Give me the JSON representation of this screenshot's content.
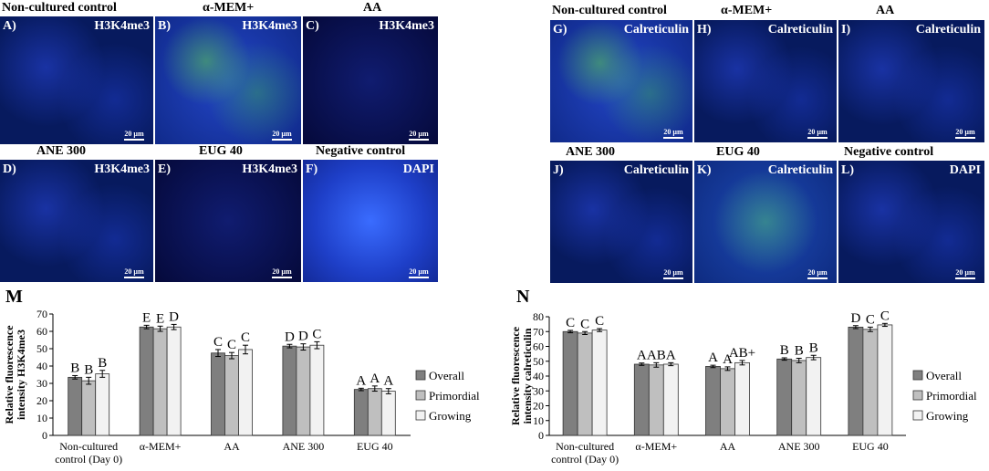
{
  "figure_left": {
    "panels": [
      {
        "title": "Non-cultured control",
        "letter": "A)",
        "stain": "H3K4me3",
        "scale": "20 µm"
      },
      {
        "title": "α-MEM+",
        "letter": "B)",
        "stain": "H3K4me3",
        "scale": "20 µm"
      },
      {
        "title": "AA",
        "letter": "C)",
        "stain": "H3K4me3",
        "scale": "20 µm"
      },
      {
        "title": "ANE 300",
        "letter": "D)",
        "stain": "H3K4me3",
        "scale": "20 µm"
      },
      {
        "title": "EUG 40",
        "letter": "E)",
        "stain": "H3K4me3",
        "scale": "20 µm"
      },
      {
        "title": "Negative control",
        "letter": "F)",
        "stain": "DAPI",
        "scale": "20 µm"
      }
    ]
  },
  "figure_right": {
    "panels": [
      {
        "title": "Non-cultured control",
        "letter": "G)",
        "stain": "Calreticulin",
        "scale": "20 µm"
      },
      {
        "title": "α-MEM+",
        "letter": "H)",
        "stain": "Calreticulin",
        "scale": "20 µm"
      },
      {
        "title": "AA",
        "letter": "I)",
        "stain": "Calreticulin",
        "scale": "20 µm"
      },
      {
        "title": "ANE 300",
        "letter": "J)",
        "stain": "Calreticulin",
        "scale": "20 µm"
      },
      {
        "title": "EUG 40",
        "letter": "K)",
        "stain": "Calreticulin",
        "scale": "20 µm"
      },
      {
        "title": "Negative control",
        "letter": "L)",
        "stain": "DAPI",
        "scale": "20 µm"
      }
    ]
  },
  "colors": {
    "overall": "#7f7f7f",
    "primordial": "#bfbfbf",
    "growing": "#f2f2f2"
  },
  "chart_data": [
    {
      "letter": "M",
      "type": "bar",
      "categories": [
        "Non-cultured control (Day 0)",
        "α-MEM+",
        "AA",
        "ANE 300",
        "EUG 40"
      ],
      "category_lines": [
        [
          "Non-cultured",
          "control (Day 0)"
        ],
        [
          "α-MEM+"
        ],
        [
          "AA"
        ],
        [
          "ANE 300"
        ],
        [
          "EUG 40"
        ]
      ],
      "series": [
        {
          "name": "Overall",
          "values": [
            33.5,
            62.5,
            47.5,
            51.5,
            26.5
          ],
          "errors": [
            1.0,
            1.0,
            2.0,
            1.0,
            0.7
          ],
          "letters": [
            "B",
            "E",
            "C",
            "D",
            "A"
          ]
        },
        {
          "name": "Primordial",
          "values": [
            31.5,
            61.5,
            46.0,
            51.0,
            27.0
          ],
          "errors": [
            2.0,
            1.5,
            1.8,
            1.8,
            1.5
          ],
          "letters": [
            "B",
            "E",
            "C",
            "D",
            "A"
          ]
        },
        {
          "name": "Growing",
          "values": [
            35.5,
            62.5,
            49.5,
            52.0,
            25.5
          ],
          "errors": [
            2.0,
            1.5,
            2.5,
            2.0,
            1.5
          ],
          "letters": [
            "B",
            "D",
            "C",
            "C",
            "A"
          ]
        }
      ],
      "ylabel_lines": [
        "Relative fluorescence",
        "intensity H3K4me3"
      ],
      "ylim": [
        0,
        70
      ],
      "yticks": [
        0,
        10,
        20,
        30,
        40,
        50,
        60,
        70
      ],
      "legend": "right"
    },
    {
      "letter": "N",
      "type": "bar",
      "categories": [
        "Non-cultured control (Day 0)",
        "α-MEM+",
        "AA",
        "ANE 300",
        "EUG 40"
      ],
      "category_lines": [
        [
          "Non-cultured",
          "control (Day 0)"
        ],
        [
          "α-MEM+"
        ],
        [
          "AA"
        ],
        [
          "ANE 300"
        ],
        [
          "EUG 40"
        ]
      ],
      "series": [
        {
          "name": "Overall",
          "values": [
            70.0,
            48.0,
            46.5,
            51.5,
            73.0
          ],
          "errors": [
            0.8,
            0.8,
            0.8,
            0.8,
            1.0
          ],
          "letters": [
            "C",
            "A",
            "A",
            "B",
            "D"
          ]
        },
        {
          "name": "Primordial",
          "values": [
            69.0,
            47.5,
            45.0,
            50.5,
            71.5
          ],
          "errors": [
            1.0,
            1.5,
            1.2,
            1.5,
            1.5
          ],
          "letters": [
            "C",
            "AB",
            "A",
            "B",
            "C"
          ]
        },
        {
          "name": "Growing",
          "values": [
            71.0,
            48.0,
            49.0,
            52.5,
            74.5
          ],
          "errors": [
            1.0,
            1.0,
            1.5,
            1.5,
            1.0
          ],
          "letters": [
            "C",
            "A",
            "AB+",
            "B",
            "C"
          ]
        }
      ],
      "ylabel_lines": [
        "Relative fluorescence",
        "intensity calreticulin"
      ],
      "ylim": [
        0,
        80
      ],
      "yticks": [
        0,
        10,
        20,
        30,
        40,
        50,
        60,
        70,
        80
      ],
      "legend": "right"
    }
  ]
}
